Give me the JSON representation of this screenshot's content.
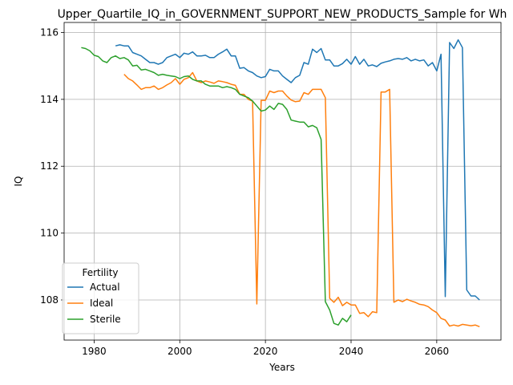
{
  "chart_data": {
    "type": "line",
    "title": "Upper_Quartile_IQ_in_GOVERNMENT_SUPPORT_NEW_PRODUCTS_Sample for Wh",
    "xlabel": "Years",
    "ylabel": "IQ",
    "xlim": [
      1973,
      2075
    ],
    "ylim": [
      106.8,
      116.3
    ],
    "x_ticks": [
      "1980",
      "2000",
      "2020",
      "2040",
      "2060"
    ],
    "y_ticks": [
      "108",
      "110",
      "112",
      "114",
      "116"
    ],
    "grid": true,
    "legend": {
      "title": "Fertility",
      "position": "lower-left"
    },
    "series": [
      {
        "name": "Actual",
        "color": "#1f77b4",
        "x": [
          1985,
          1986,
          1987,
          1988,
          1989,
          1990,
          1991,
          1992,
          1993,
          1994,
          1995,
          1996,
          1997,
          1998,
          1999,
          2000,
          2001,
          2002,
          2003,
          2004,
          2005,
          2006,
          2007,
          2008,
          2009,
          2010,
          2011,
          2012,
          2013,
          2014,
          2015,
          2016,
          2017,
          2018,
          2019,
          2020,
          2021,
          2022,
          2023,
          2024,
          2025,
          2026,
          2027,
          2028,
          2029,
          2030,
          2031,
          2032,
          2033,
          2034,
          2035,
          2036,
          2037,
          2038,
          2039,
          2040,
          2041,
          2042,
          2043,
          2044,
          2045,
          2046,
          2047,
          2048,
          2049,
          2050,
          2051,
          2052,
          2053,
          2054,
          2055,
          2056,
          2057,
          2058,
          2059,
          2060,
          2061,
          2062,
          2063,
          2064,
          2065,
          2066,
          2067,
          2068,
          2069,
          2070
        ],
        "y": [
          115.6,
          115.63,
          115.6,
          115.6,
          115.4,
          115.35,
          115.3,
          115.2,
          115.1,
          115.1,
          115.05,
          115.1,
          115.25,
          115.3,
          115.35,
          115.25,
          115.38,
          115.35,
          115.42,
          115.3,
          115.3,
          115.32,
          115.25,
          115.25,
          115.35,
          115.42,
          115.5,
          115.3,
          115.3,
          114.93,
          114.95,
          114.85,
          114.8,
          114.7,
          114.65,
          114.68,
          114.9,
          114.85,
          114.85,
          114.7,
          114.6,
          114.5,
          114.65,
          114.72,
          115.1,
          115.05,
          115.5,
          115.4,
          115.52,
          115.18,
          115.18,
          115.0,
          115.0,
          115.07,
          115.2,
          115.05,
          115.28,
          115.05,
          115.2,
          115.0,
          115.03,
          114.98,
          115.08,
          115.12,
          115.15,
          115.2,
          115.22,
          115.2,
          115.25,
          115.15,
          115.2,
          115.15,
          115.18,
          115.0,
          115.1,
          114.85,
          115.35,
          108.1,
          115.7,
          115.52,
          115.78,
          115.55,
          108.3,
          108.12,
          108.12,
          108.0
        ]
      },
      {
        "name": "Ideal",
        "color": "#ff7f0e",
        "x": [
          1987,
          1988,
          1989,
          1990,
          1991,
          1992,
          1993,
          1994,
          1995,
          1996,
          1997,
          1998,
          1999,
          2000,
          2001,
          2002,
          2003,
          2004,
          2005,
          2006,
          2007,
          2008,
          2009,
          2010,
          2011,
          2012,
          2013,
          2014,
          2015,
          2016,
          2017,
          2018,
          2019,
          2020,
          2021,
          2022,
          2023,
          2024,
          2025,
          2026,
          2027,
          2028,
          2029,
          2030,
          2031,
          2032,
          2033,
          2034,
          2035,
          2036,
          2037,
          2038,
          2039,
          2040,
          2041,
          2042,
          2043,
          2044,
          2045,
          2046,
          2047,
          2048,
          2049,
          2050,
          2051,
          2052,
          2053,
          2054,
          2055,
          2056,
          2057,
          2058,
          2059,
          2060,
          2061,
          2062,
          2063,
          2064,
          2065,
          2066,
          2067,
          2068,
          2069,
          2070
        ],
        "y": [
          114.75,
          114.62,
          114.55,
          114.43,
          114.3,
          114.35,
          114.35,
          114.4,
          114.3,
          114.35,
          114.43,
          114.5,
          114.62,
          114.45,
          114.6,
          114.65,
          114.8,
          114.55,
          114.5,
          114.55,
          114.52,
          114.48,
          114.55,
          114.53,
          114.5,
          114.45,
          114.42,
          114.15,
          114.15,
          114.0,
          113.95,
          107.88,
          113.97,
          113.97,
          114.25,
          114.2,
          114.25,
          114.25,
          114.1,
          113.98,
          113.93,
          113.95,
          114.2,
          114.15,
          114.3,
          114.3,
          114.3,
          114.05,
          108.05,
          107.93,
          108.08,
          107.83,
          107.93,
          107.85,
          107.85,
          107.6,
          107.62,
          107.5,
          107.65,
          107.62,
          114.22,
          114.22,
          114.3,
          107.93,
          108.0,
          107.95,
          108.02,
          107.97,
          107.93,
          107.87,
          107.85,
          107.8,
          107.7,
          107.62,
          107.45,
          107.4,
          107.22,
          107.25,
          107.22,
          107.27,
          107.25,
          107.23,
          107.25,
          107.2
        ]
      },
      {
        "name": "Sterile",
        "color": "#2ca02c",
        "x": [
          1977,
          1978,
          1979,
          1980,
          1981,
          1982,
          1983,
          1984,
          1985,
          1986,
          1987,
          1988,
          1989,
          1990,
          1991,
          1992,
          1993,
          1994,
          1995,
          1996,
          1997,
          1998,
          1999,
          2000,
          2001,
          2002,
          2003,
          2004,
          2005,
          2006,
          2007,
          2008,
          2009,
          2010,
          2011,
          2012,
          2013,
          2014,
          2015,
          2016,
          2017,
          2018,
          2019,
          2020,
          2021,
          2022,
          2023,
          2024,
          2025,
          2026,
          2027,
          2028,
          2029,
          2030,
          2031,
          2032,
          2033,
          2034,
          2035,
          2036,
          2037,
          2038,
          2039,
          2040
        ],
        "y": [
          115.55,
          115.52,
          115.45,
          115.32,
          115.28,
          115.15,
          115.1,
          115.25,
          115.3,
          115.22,
          115.25,
          115.18,
          115.0,
          115.02,
          114.88,
          114.9,
          114.85,
          114.8,
          114.72,
          114.75,
          114.72,
          114.7,
          114.68,
          114.62,
          114.68,
          114.7,
          114.6,
          114.55,
          114.55,
          114.45,
          114.4,
          114.4,
          114.4,
          114.35,
          114.38,
          114.35,
          114.3,
          114.15,
          114.1,
          114.05,
          113.95,
          113.8,
          113.65,
          113.68,
          113.8,
          113.7,
          113.88,
          113.85,
          113.7,
          113.38,
          113.35,
          113.32,
          113.32,
          113.18,
          113.22,
          113.15,
          112.8,
          107.95,
          107.7,
          107.3,
          107.25,
          107.45,
          107.35,
          107.55
        ]
      }
    ]
  }
}
